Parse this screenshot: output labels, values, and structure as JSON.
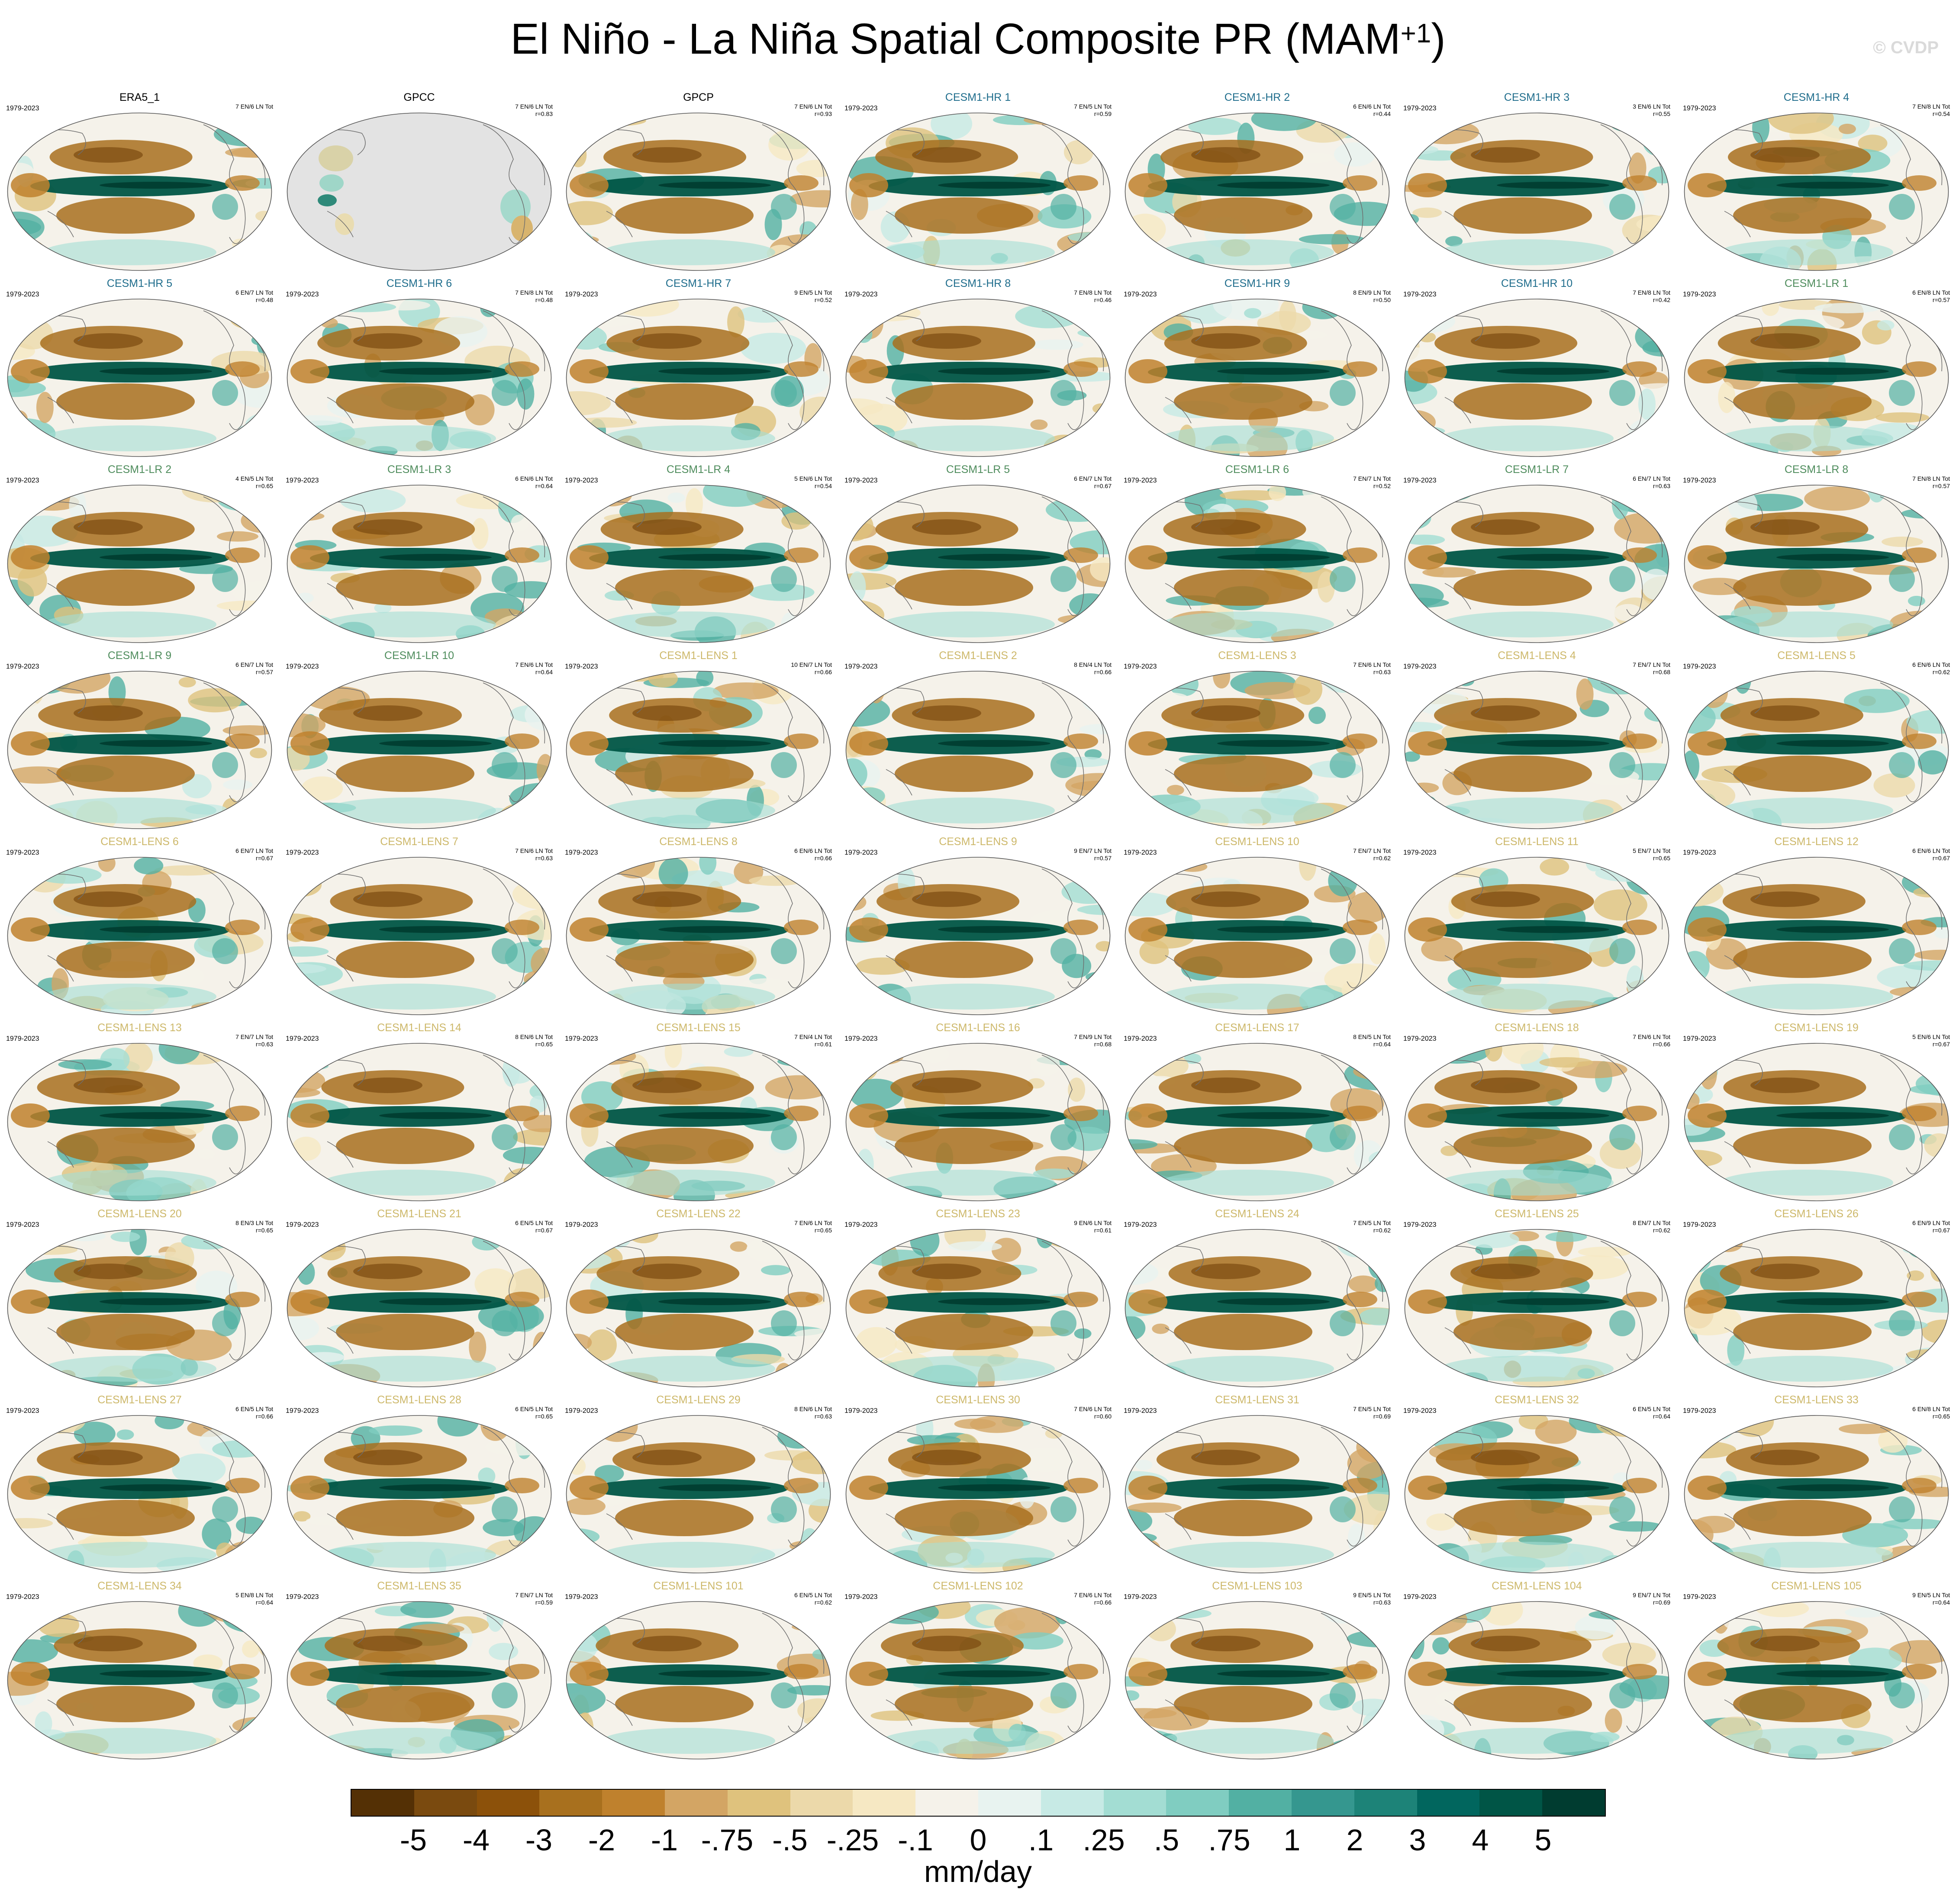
{
  "title": {
    "main": "El Niño - La Niña Spatial Composite PR (MAM",
    "sup": "+1",
    "close": ")"
  },
  "watermark": "© CVDP",
  "units": "mm/day",
  "colorbar": {
    "colors": [
      "#543005",
      "#7a4a0f",
      "#8c510a",
      "#a8701e",
      "#bf812d",
      "#d3a564",
      "#dfc27d",
      "#ecd9aa",
      "#f6e8c3",
      "#f5f2ea",
      "#e8f3f0",
      "#c7eae5",
      "#a3ddd3",
      "#80cdc1",
      "#52b0a3",
      "#35978f",
      "#1d8378",
      "#01665e",
      "#005546",
      "#003c30"
    ],
    "labels": [
      "-5",
      "-4",
      "-3",
      "-2",
      "-1",
      "-.75",
      "-.5",
      "-.25",
      "-.1",
      "0",
      ".1",
      ".25",
      ".5",
      ".75",
      "1",
      "2",
      "3",
      "4",
      "5"
    ]
  },
  "groups": {
    "obs": "#000000",
    "hr": "#1f6d8c",
    "lr": "#4e8c5c",
    "lens": "#cdb86a"
  },
  "panels": [
    {
      "name": "ERA5_1",
      "group": "obs",
      "years": "1979-2023",
      "stats": "7 EN/6 LN Tot"
    },
    {
      "name": "GPCC",
      "group": "obs",
      "years": "",
      "stats": "7 EN/6 LN Tot\nr=0.83",
      "land_only": true
    },
    {
      "name": "GPCP",
      "group": "obs",
      "years": "",
      "stats": "7 EN/6 LN Tot\nr=0.93"
    },
    {
      "name": "CESM1-HR 1",
      "group": "hr",
      "years": "1979-2023",
      "stats": "7 EN/5 LN Tot\nr=0.59"
    },
    {
      "name": "CESM1-HR 2",
      "group": "hr",
      "years": "",
      "stats": "6 EN/6 LN Tot\nr=0.44"
    },
    {
      "name": "CESM1-HR 3",
      "group": "hr",
      "years": "1979-2023",
      "stats": "3 EN/6 LN Tot\nr=0.55"
    },
    {
      "name": "CESM1-HR 4",
      "group": "hr",
      "years": "1979-2023",
      "stats": "7 EN/8 LN Tot\nr=0.54"
    },
    {
      "name": "CESM1-HR 5",
      "group": "hr",
      "years": "1979-2023",
      "stats": "6 EN/7 LN Tot\nr=0.48"
    },
    {
      "name": "CESM1-HR 6",
      "group": "hr",
      "years": "1979-2023",
      "stats": "7 EN/8 LN Tot\nr=0.48"
    },
    {
      "name": "CESM1-HR 7",
      "group": "hr",
      "years": "1979-2023",
      "stats": "9 EN/5 LN Tot\nr=0.52"
    },
    {
      "name": "CESM1-HR 8",
      "group": "hr",
      "years": "1979-2023",
      "stats": "7 EN/8 LN Tot\nr=0.46"
    },
    {
      "name": "CESM1-HR 9",
      "group": "hr",
      "years": "1979-2023",
      "stats": "8 EN/9 LN Tot\nr=0.50"
    },
    {
      "name": "CESM1-HR 10",
      "group": "hr",
      "years": "1979-2023",
      "stats": "7 EN/8 LN Tot\nr=0.42"
    },
    {
      "name": "CESM1-LR 1",
      "group": "lr",
      "years": "1979-2023",
      "stats": "6 EN/8 LN Tot\nr=0.57"
    },
    {
      "name": "CESM1-LR 2",
      "group": "lr",
      "years": "1979-2023",
      "stats": "4 EN/5 LN Tot\nr=0.65"
    },
    {
      "name": "CESM1-LR 3",
      "group": "lr",
      "years": "1979-2023",
      "stats": "6 EN/6 LN Tot\nr=0.64"
    },
    {
      "name": "CESM1-LR 4",
      "group": "lr",
      "years": "1979-2023",
      "stats": "5 EN/6 LN Tot\nr=0.54"
    },
    {
      "name": "CESM1-LR 5",
      "group": "lr",
      "years": "1979-2023",
      "stats": "6 EN/7 LN Tot\nr=0.67"
    },
    {
      "name": "CESM1-LR 6",
      "group": "lr",
      "years": "1979-2023",
      "stats": "7 EN/7 LN Tot\nr=0.52"
    },
    {
      "name": "CESM1-LR 7",
      "group": "lr",
      "years": "1979-2023",
      "stats": "6 EN/7 LN Tot\nr=0.63"
    },
    {
      "name": "CESM1-LR 8",
      "group": "lr",
      "years": "1979-2023",
      "stats": "7 EN/8 LN Tot\nr=0.57"
    },
    {
      "name": "CESM1-LR 9",
      "group": "lr",
      "years": "1979-2023",
      "stats": "6 EN/7 LN Tot\nr=0.57"
    },
    {
      "name": "CESM1-LR 10",
      "group": "lr",
      "years": "1979-2023",
      "stats": "7 EN/6 LN Tot\nr=0.64"
    },
    {
      "name": "CESM1-LENS 1",
      "group": "lens",
      "years": "1979-2023",
      "stats": "10 EN/7 LN Tot\nr=0.66"
    },
    {
      "name": "CESM1-LENS 2",
      "group": "lens",
      "years": "1979-2023",
      "stats": "8 EN/4 LN Tot\nr=0.66"
    },
    {
      "name": "CESM1-LENS 3",
      "group": "lens",
      "years": "1979-2023",
      "stats": "7 EN/6 LN Tot\nr=0.63"
    },
    {
      "name": "CESM1-LENS 4",
      "group": "lens",
      "years": "1979-2023",
      "stats": "7 EN/7 LN Tot\nr=0.68"
    },
    {
      "name": "CESM1-LENS 5",
      "group": "lens",
      "years": "1979-2023",
      "stats": "6 EN/6 LN Tot\nr=0.62"
    },
    {
      "name": "CESM1-LENS 6",
      "group": "lens",
      "years": "1979-2023",
      "stats": "6 EN/7 LN Tot\nr=0.67"
    },
    {
      "name": "CESM1-LENS 7",
      "group": "lens",
      "years": "1979-2023",
      "stats": "7 EN/6 LN Tot\nr=0.63"
    },
    {
      "name": "CESM1-LENS 8",
      "group": "lens",
      "years": "1979-2023",
      "stats": "6 EN/6 LN Tot\nr=0.66"
    },
    {
      "name": "CESM1-LENS 9",
      "group": "lens",
      "years": "1979-2023",
      "stats": "9 EN/7 LN Tot\nr=0.57"
    },
    {
      "name": "CESM1-LENS 10",
      "group": "lens",
      "years": "1979-2023",
      "stats": "7 EN/7 LN Tot\nr=0.62"
    },
    {
      "name": "CESM1-LENS 11",
      "group": "lens",
      "years": "1979-2023",
      "stats": "5 EN/7 LN Tot\nr=0.65"
    },
    {
      "name": "CESM1-LENS 12",
      "group": "lens",
      "years": "1979-2023",
      "stats": "6 EN/6 LN Tot\nr=0.67"
    },
    {
      "name": "CESM1-LENS 13",
      "group": "lens",
      "years": "1979-2023",
      "stats": "7 EN/7 LN Tot\nr=0.63"
    },
    {
      "name": "CESM1-LENS 14",
      "group": "lens",
      "years": "1979-2023",
      "stats": "8 EN/6 LN Tot\nr=0.65"
    },
    {
      "name": "CESM1-LENS 15",
      "group": "lens",
      "years": "1979-2023",
      "stats": "7 EN/4 LN Tot\nr=0.61"
    },
    {
      "name": "CESM1-LENS 16",
      "group": "lens",
      "years": "1979-2023",
      "stats": "7 EN/9 LN Tot\nr=0.68"
    },
    {
      "name": "CESM1-LENS 17",
      "group": "lens",
      "years": "1979-2023",
      "stats": "8 EN/5 LN Tot\nr=0.64"
    },
    {
      "name": "CESM1-LENS 18",
      "group": "lens",
      "years": "1979-2023",
      "stats": "7 EN/6 LN Tot\nr=0.66"
    },
    {
      "name": "CESM1-LENS 19",
      "group": "lens",
      "years": "1979-2023",
      "stats": "5 EN/6 LN Tot\nr=0.67"
    },
    {
      "name": "CESM1-LENS 20",
      "group": "lens",
      "years": "1979-2023",
      "stats": "8 EN/3 LN Tot\nr=0.65"
    },
    {
      "name": "CESM1-LENS 21",
      "group": "lens",
      "years": "1979-2023",
      "stats": "6 EN/5 LN Tot\nr=0.67"
    },
    {
      "name": "CESM1-LENS 22",
      "group": "lens",
      "years": "1979-2023",
      "stats": "7 EN/6 LN Tot\nr=0.65"
    },
    {
      "name": "CESM1-LENS 23",
      "group": "lens",
      "years": "1979-2023",
      "stats": "9 EN/6 LN Tot\nr=0.61"
    },
    {
      "name": "CESM1-LENS 24",
      "group": "lens",
      "years": "1979-2023",
      "stats": "7 EN/5 LN Tot\nr=0.62"
    },
    {
      "name": "CESM1-LENS 25",
      "group": "lens",
      "years": "1979-2023",
      "stats": "8 EN/7 LN Tot\nr=0.62"
    },
    {
      "name": "CESM1-LENS 26",
      "group": "lens",
      "years": "1979-2023",
      "stats": "6 EN/9 LN Tot\nr=0.67"
    },
    {
      "name": "CESM1-LENS 27",
      "group": "lens",
      "years": "1979-2023",
      "stats": "6 EN/5 LN Tot\nr=0.66"
    },
    {
      "name": "CESM1-LENS 28",
      "group": "lens",
      "years": "1979-2023",
      "stats": "6 EN/5 LN Tot\nr=0.65"
    },
    {
      "name": "CESM1-LENS 29",
      "group": "lens",
      "years": "1979-2023",
      "stats": "8 EN/6 LN Tot\nr=0.63"
    },
    {
      "name": "CESM1-LENS 30",
      "group": "lens",
      "years": "1979-2023",
      "stats": "7 EN/6 LN Tot\nr=0.60"
    },
    {
      "name": "CESM1-LENS 31",
      "group": "lens",
      "years": "1979-2023",
      "stats": "7 EN/5 LN Tot\nr=0.69"
    },
    {
      "name": "CESM1-LENS 32",
      "group": "lens",
      "years": "1979-2023",
      "stats": "6 EN/5 LN Tot\nr=0.64"
    },
    {
      "name": "CESM1-LENS 33",
      "group": "lens",
      "years": "1979-2023",
      "stats": "6 EN/8 LN Tot\nr=0.65"
    },
    {
      "name": "CESM1-LENS 34",
      "group": "lens",
      "years": "1979-2023",
      "stats": "5 EN/8 LN Tot\nr=0.64"
    },
    {
      "name": "CESM1-LENS 35",
      "group": "lens",
      "years": "1979-2023",
      "stats": "7 EN/7 LN Tot\nr=0.59"
    },
    {
      "name": "CESM1-LENS 101",
      "group": "lens",
      "years": "1979-2023",
      "stats": "6 EN/5 LN Tot\nr=0.62"
    },
    {
      "name": "CESM1-LENS 102",
      "group": "lens",
      "years": "1979-2023",
      "stats": "7 EN/6 LN Tot\nr=0.66"
    },
    {
      "name": "CESM1-LENS 103",
      "group": "lens",
      "years": "1979-2023",
      "stats": "9 EN/5 LN Tot\nr=0.63"
    },
    {
      "name": "CESM1-LENS 104",
      "group": "lens",
      "years": "1979-2023",
      "stats": "9 EN/7 LN Tot\nr=0.69"
    },
    {
      "name": "CESM1-LENS 105",
      "group": "lens",
      "years": "1979-2023",
      "stats": "9 EN/5 LN Tot\nr=0.64"
    }
  ]
}
